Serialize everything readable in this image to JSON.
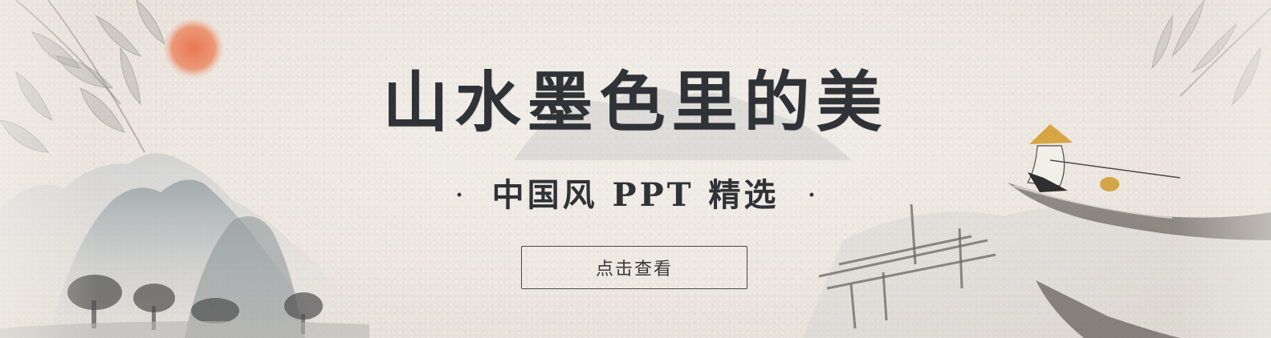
{
  "banner": {
    "title": "山水墨色里的美",
    "subtitle": "中国风 PPT 精选",
    "separator_dot": "·",
    "cta_label": "点击查看"
  },
  "colors": {
    "background": "#ebe5de",
    "title_ink": "#2f3236",
    "sun": "#e77c55",
    "mountain": "#a9b0b2",
    "tree": "#5c5c5c"
  },
  "decor": {
    "sun_icon": "red-sun-icon",
    "bamboo_icon": "bamboo-leaves-icon",
    "mountains_icon": "ink-mountains-icon",
    "trees_icon": "ink-trees-icon",
    "fisherman_icon": "fisherman-boat-icon",
    "dock_icon": "wooden-dock-icon"
  }
}
